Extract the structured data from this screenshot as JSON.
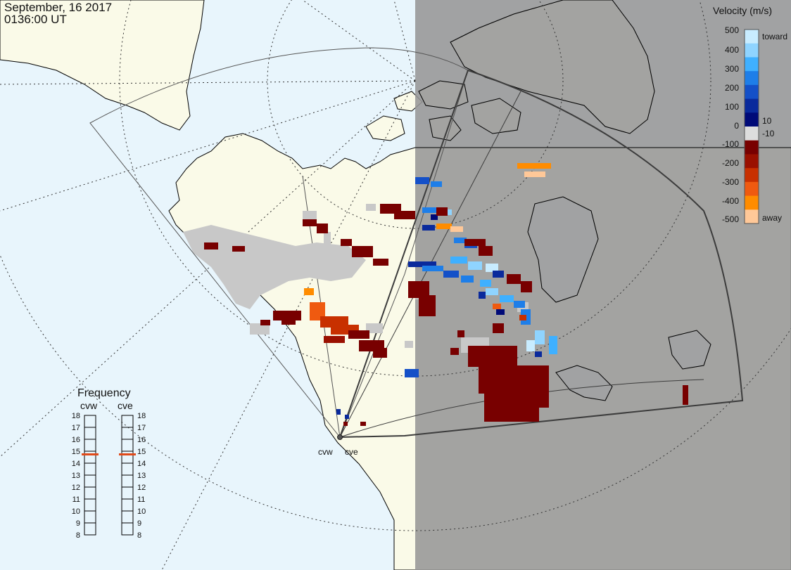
{
  "header": {
    "date": "September, 16 2017",
    "time": "0136:00 UT"
  },
  "radars": {
    "west_label": "cvw",
    "east_label": "cve"
  },
  "velocity_scale": {
    "title": "Velocity (m/s)",
    "tick_labels": [
      "500",
      "400",
      "300",
      "200",
      "100",
      "10",
      "0",
      "-10",
      "-100",
      "-200",
      "-300",
      "-400",
      "-500"
    ],
    "toward_label": "toward",
    "away_label": "away",
    "colors": [
      "#c8ecff",
      "#8fd4ff",
      "#3fb0ff",
      "#1e7ee8",
      "#1450c8",
      "#0a2a9c",
      "#000a78",
      "#dddddd",
      "#780000",
      "#9a1000",
      "#c83000",
      "#ef5a10",
      "#ff8c00",
      "#ffc898"
    ]
  },
  "frequency": {
    "title": "Frequency",
    "left_label": "cvw",
    "right_label": "cve",
    "levels": [
      "18",
      "17",
      "16",
      "15",
      "14",
      "13",
      "12",
      "11",
      "10",
      "9",
      "8"
    ],
    "cvw_value": 15,
    "cve_value": 15,
    "marker_color": "#e04a1a"
  },
  "map_colors": {
    "ocean": "#e8f5fc",
    "land": "#fafae8",
    "night": "#969696",
    "ground_scatter": "#c8c8c8",
    "coastline": "#000000",
    "fov_outline": "#3c3c3c"
  }
}
